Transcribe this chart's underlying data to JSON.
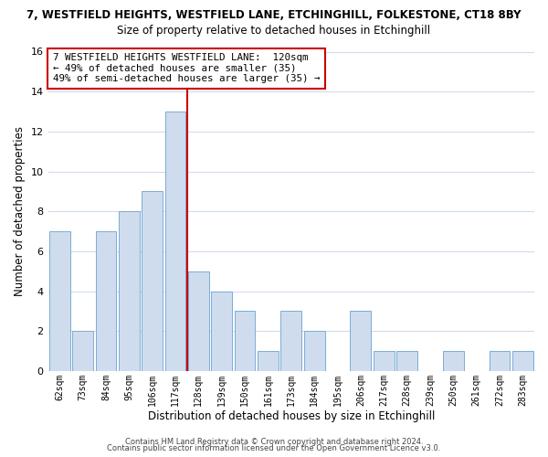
{
  "title": "7, WESTFIELD HEIGHTS, WESTFIELD LANE, ETCHINGHILL, FOLKESTONE, CT18 8BY",
  "subtitle": "Size of property relative to detached houses in Etchinghill",
  "xlabel": "Distribution of detached houses by size in Etchinghill",
  "ylabel": "Number of detached properties",
  "categories": [
    "62sqm",
    "73sqm",
    "84sqm",
    "95sqm",
    "106sqm",
    "117sqm",
    "128sqm",
    "139sqm",
    "150sqm",
    "161sqm",
    "173sqm",
    "184sqm",
    "195sqm",
    "206sqm",
    "217sqm",
    "228sqm",
    "239sqm",
    "250sqm",
    "261sqm",
    "272sqm",
    "283sqm"
  ],
  "values": [
    7,
    2,
    7,
    8,
    9,
    13,
    5,
    4,
    3,
    1,
    3,
    2,
    0,
    3,
    1,
    1,
    0,
    1,
    0,
    1,
    1
  ],
  "bar_color": "#cfdcee",
  "bar_edge_color": "#7aadd4",
  "reference_line_color": "#cc0000",
  "annotation_line1": "7 WESTFIELD HEIGHTS WESTFIELD LANE:  120sqm",
  "annotation_line2": "← 49% of detached houses are smaller (35)",
  "annotation_line3": "49% of semi-detached houses are larger (35) →",
  "annotation_box_edge_color": "#cc0000",
  "ylim": [
    0,
    16
  ],
  "yticks": [
    0,
    2,
    4,
    6,
    8,
    10,
    12,
    14,
    16
  ],
  "footer_line1": "Contains HM Land Registry data © Crown copyright and database right 2024.",
  "footer_line2": "Contains public sector information licensed under the Open Government Licence v3.0.",
  "background_color": "#ffffff",
  "grid_color": "#d0dcea"
}
